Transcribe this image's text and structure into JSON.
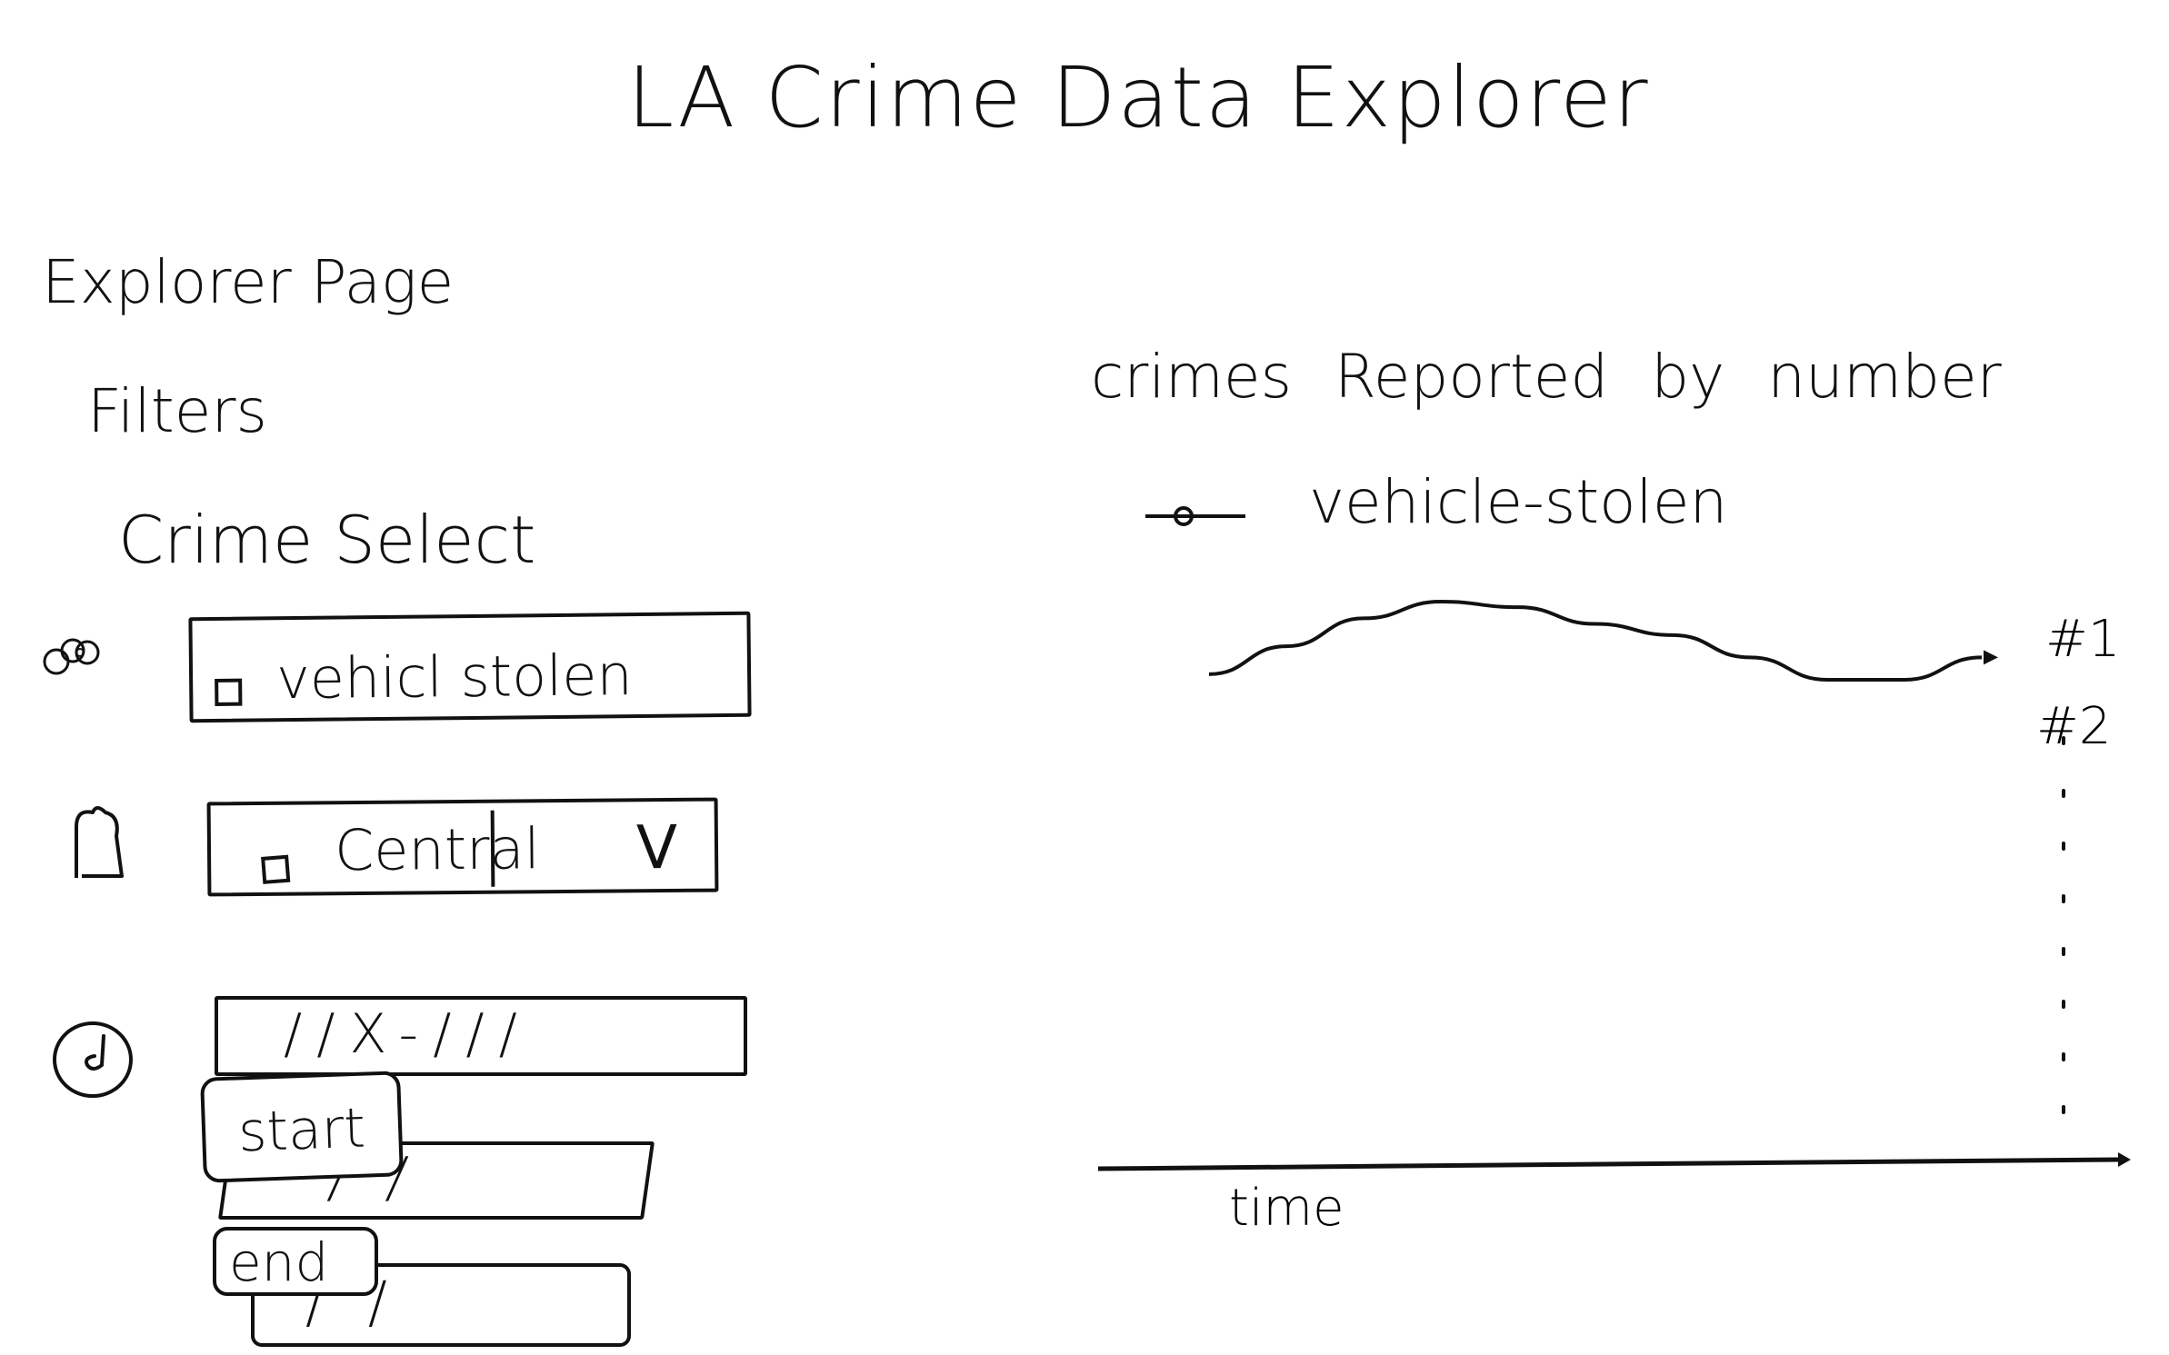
{
  "header": {
    "title": "LA Crime Data Explorer"
  },
  "page": {
    "heading": "Explorer Page"
  },
  "filters": {
    "heading": "Filters",
    "crime_select": {
      "heading": "Crime Select",
      "selected_label": "vehicl stolen",
      "checked": false
    },
    "area_select": {
      "selected_label": "Central",
      "checked": false,
      "dropdown_symbol": "V"
    },
    "date_range": {
      "range_value": "//X-///",
      "start_label": "start",
      "start_value": "//",
      "end_label": "end",
      "end_value": "//"
    },
    "icons": [
      "filter-icon",
      "location-pin-icon",
      "clock-icon"
    ]
  },
  "chart": {
    "title": "crimes Reported by number",
    "legend": {
      "label": "vehicle-stolen"
    },
    "rank_labels": [
      "#1",
      "#2"
    ],
    "xlabel": "time",
    "colors": {
      "stroke": "#111111",
      "background": "#ffffff"
    }
  },
  "chart_data": {
    "type": "line",
    "title": "crimes Reported by number",
    "xlabel": "time",
    "ylabel": "",
    "series": [
      {
        "name": "vehicle-stolen",
        "x": [
          0,
          1,
          2,
          3,
          4,
          5,
          6,
          7,
          8,
          9,
          10
        ],
        "values": [
          0.87,
          0.92,
          0.97,
          1.0,
          0.99,
          0.96,
          0.94,
          0.9,
          0.86,
          0.86,
          0.9
        ]
      }
    ],
    "yticks": [
      "#1",
      "#2"
    ],
    "legend": "top-left",
    "grid": false
  }
}
